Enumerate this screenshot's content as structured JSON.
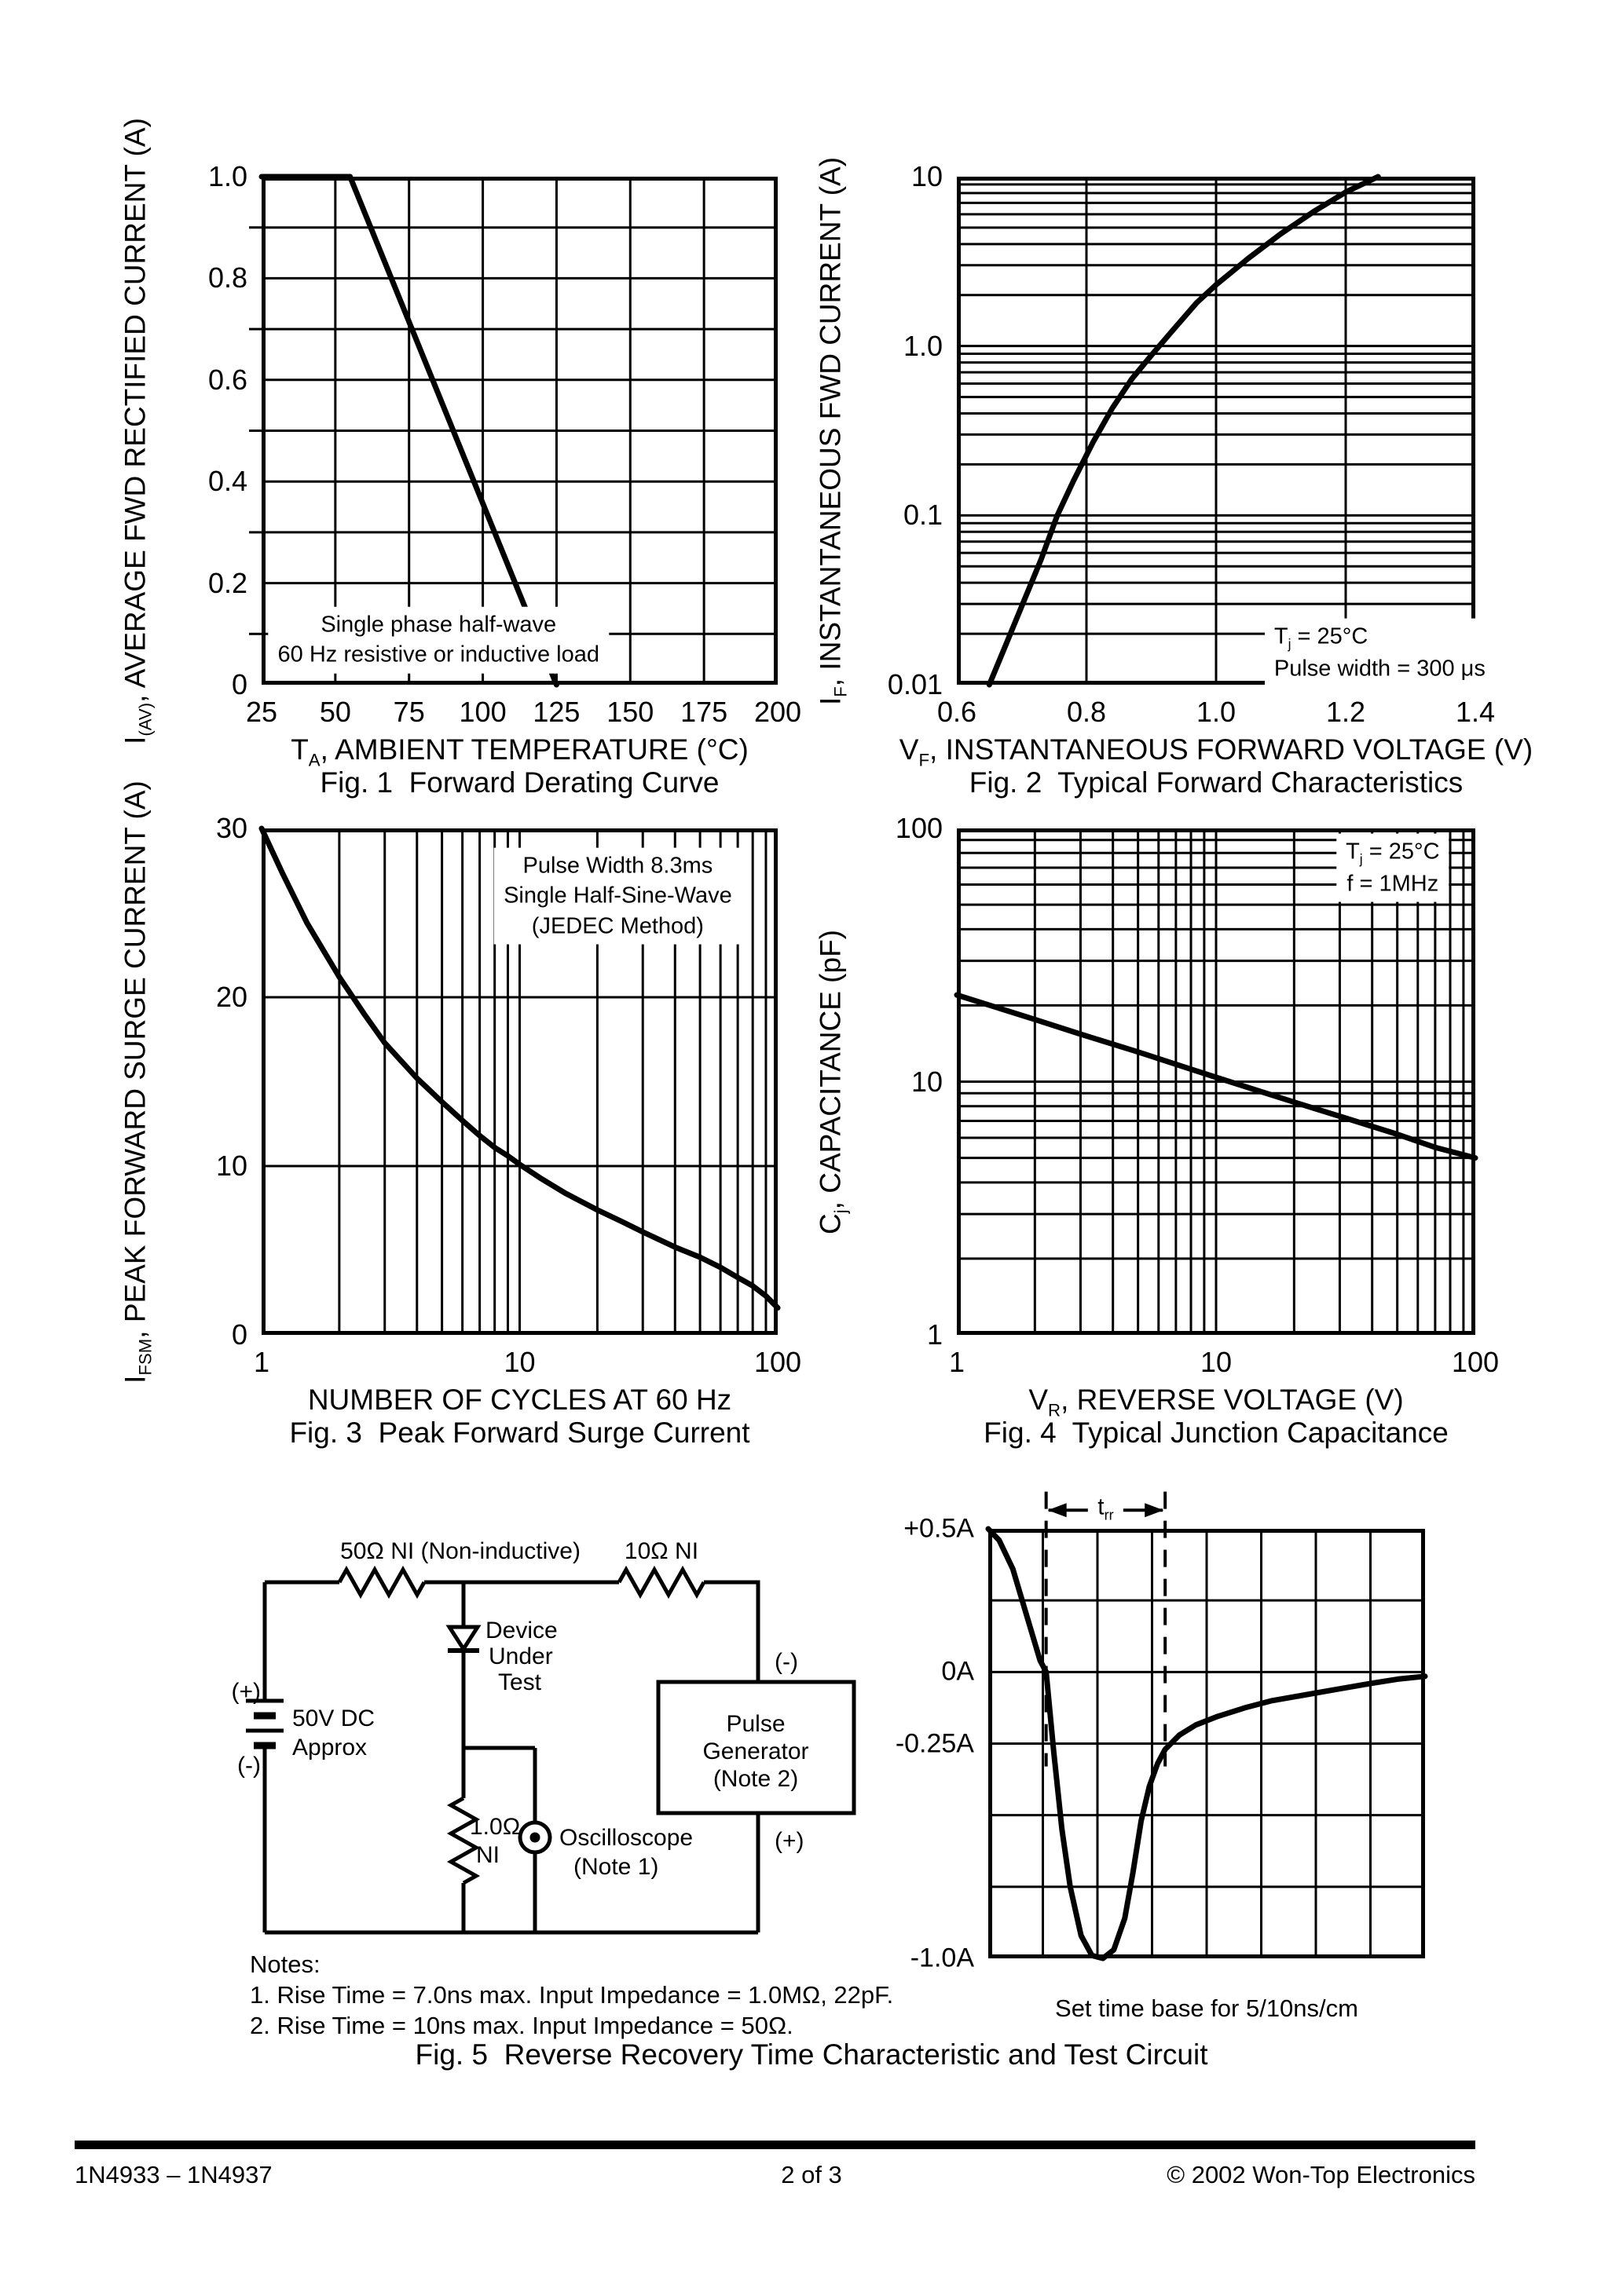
{
  "page": {
    "footer": {
      "left": "1N4933 – 1N4937",
      "center": "2 of 3",
      "right": "© 2002 Won-Top Electronics"
    },
    "fig5_caption": "Fig. 5  Reverse Recovery Time Characteristic and Test Circuit",
    "notes_title": "Notes:",
    "note1": "1. Rise Time = 7.0ns max. Input Impedance = 1.0MΩ, 22pF.",
    "note2": "2. Rise Time = 10ns max. Input Impedance = 50Ω."
  },
  "circuit": {
    "r1_label": "50Ω NI (Non-inductive)",
    "r2_label": "10Ω NI",
    "dut_line1": "Device",
    "dut_line2": "Under",
    "dut_line3": "Test",
    "battery_plus": "(+)",
    "battery_minus": "(-)",
    "battery_line1": "50V DC",
    "battery_line2": "Approx",
    "pulse_line1": "Pulse",
    "pulse_line2": "Generator",
    "pulse_line3": "(Note 2)",
    "pulse_minus": "(-)",
    "pulse_plus": "(+)",
    "sense_line1": "1.0Ω",
    "sense_line2": "NI",
    "osc_line1": "Oscilloscope",
    "osc_line2": "(Note 1)"
  },
  "chart_data": [
    {
      "id": "fig1",
      "type": "line",
      "title": "Fig. 1  Forward Derating Curve",
      "xscale": "linear",
      "yscale": "linear",
      "xlim": [
        25,
        200
      ],
      "ylim": [
        0,
        1
      ],
      "xlabel": [
        {
          "t": "T"
        },
        {
          "s": "A"
        },
        {
          "t": ", AMBIENT TEMPERATURE (°C)"
        }
      ],
      "ylabel": [
        {
          "t": "I"
        },
        {
          "s": "(AV)"
        },
        {
          "t": ", AVERAGE FWD RECTIFIED CURRENT (A)"
        }
      ],
      "xticks": [
        {
          "v": 25,
          "l": "25"
        },
        {
          "v": 50,
          "l": "50"
        },
        {
          "v": 75,
          "l": "75"
        },
        {
          "v": 100,
          "l": "100"
        },
        {
          "v": 125,
          "l": "125"
        },
        {
          "v": 150,
          "l": "150"
        },
        {
          "v": 175,
          "l": "175"
        },
        {
          "v": 200,
          "l": "200"
        }
      ],
      "yticks": [
        {
          "v": 0,
          "l": "0"
        },
        {
          "v": 0.2,
          "l": "0.2"
        },
        {
          "v": 0.4,
          "l": "0.4"
        },
        {
          "v": 0.6,
          "l": "0.6"
        },
        {
          "v": 0.8,
          "l": "0.8"
        },
        {
          "v": 1,
          "l": "1.0"
        }
      ],
      "xgrid": [
        50,
        75,
        100,
        125,
        150,
        175
      ],
      "ygrid": [
        0.1,
        0.2,
        0.3,
        0.4,
        0.5,
        0.6,
        0.7,
        0.8,
        0.9
      ],
      "yticks_out": [
        0.1,
        0.3,
        0.5,
        0.7,
        0.9
      ],
      "series": [
        {
          "name": "derating-curve",
          "points": [
            [
              25,
              1
            ],
            [
              55,
              1
            ],
            [
              125,
              0
            ]
          ]
        }
      ],
      "annotations": [
        {
          "x": 85,
          "y": 0.088,
          "align": "center",
          "lines": [
            [
              {
                "t": "Single phase half-wave"
              }
            ],
            [
              {
                "t": "60 Hz resistive or inductive load"
              }
            ]
          ]
        }
      ]
    },
    {
      "id": "fig2",
      "type": "line",
      "title": "Fig. 2  Typical Forward Characteristics",
      "xscale": "linear",
      "yscale": "log",
      "xlim": [
        0.6,
        1.4
      ],
      "ylim": [
        0.01,
        10
      ],
      "xlabel": [
        {
          "t": "V"
        },
        {
          "s": "F"
        },
        {
          "t": ", INSTANTANEOUS FORWARD VOLTAGE (V)"
        }
      ],
      "ylabel": [
        {
          "t": "I"
        },
        {
          "s": "F"
        },
        {
          "t": ", INSTANTANEOUS FWD CURRENT (A)"
        }
      ],
      "xticks": [
        {
          "v": 0.6,
          "l": "0.6"
        },
        {
          "v": 0.8,
          "l": "0.8"
        },
        {
          "v": 1.0,
          "l": "1.0"
        },
        {
          "v": 1.2,
          "l": "1.2"
        },
        {
          "v": 1.4,
          "l": "1.4"
        }
      ],
      "yticks": [
        {
          "v": 10,
          "l": "10"
        },
        {
          "v": 1,
          "l": "1.0"
        },
        {
          "v": 0.1,
          "l": "0.1"
        },
        {
          "v": 0.01,
          "l": "0.01"
        }
      ],
      "xgrid": [
        0.8,
        1.0,
        1.2
      ],
      "series": [
        {
          "name": "forward-characteristic-curve",
          "points": [
            [
              0.65,
              0.01
            ],
            [
              0.675,
              0.017
            ],
            [
              0.7,
              0.029
            ],
            [
              0.73,
              0.055
            ],
            [
              0.755,
              0.1
            ],
            [
              0.78,
              0.16
            ],
            [
              0.81,
              0.27
            ],
            [
              0.84,
              0.43
            ],
            [
              0.87,
              0.64
            ],
            [
              0.9,
              0.88
            ],
            [
              0.93,
              1.2
            ],
            [
              0.97,
              1.8
            ],
            [
              1.0,
              2.3
            ],
            [
              1.05,
              3.3
            ],
            [
              1.1,
              4.6
            ],
            [
              1.15,
              6.2
            ],
            [
              1.2,
              8.1
            ],
            [
              1.25,
              10
            ]
          ]
        }
      ],
      "annotations": [
        {
          "x": 1.075,
          "y": 0.0155,
          "align": "left",
          "lines": [
            [
              {
                "t": "T"
              },
              {
                "s": "j"
              },
              {
                "t": " = 25°C"
              }
            ],
            [
              {
                "t": "Pulse width = 300 μs"
              }
            ]
          ]
        }
      ]
    },
    {
      "id": "fig3",
      "type": "line",
      "title": "Fig. 3  Peak Forward Surge Current",
      "xscale": "log",
      "yscale": "linear",
      "xlim": [
        1,
        100
      ],
      "ylim": [
        0,
        30
      ],
      "xlabel": [
        {
          "t": "NUMBER OF CYCLES AT 60 Hz"
        }
      ],
      "ylabel": [
        {
          "t": "I"
        },
        {
          "s": "FSM"
        },
        {
          "t": ", PEAK FORWARD SURGE CURRENT (A)"
        }
      ],
      "xticks": [
        {
          "v": 1,
          "l": "1"
        },
        {
          "v": 10,
          "l": "10"
        },
        {
          "v": 100,
          "l": "100"
        }
      ],
      "yticks": [
        {
          "v": 0,
          "l": "0"
        },
        {
          "v": 10,
          "l": "10"
        },
        {
          "v": 20,
          "l": "20"
        },
        {
          "v": 30,
          "l": "30"
        }
      ],
      "ygrid": [
        10,
        20
      ],
      "series": [
        {
          "name": "surge-current-curve",
          "points": [
            [
              1,
              30
            ],
            [
              1.2,
              27.4
            ],
            [
              1.5,
              24.4
            ],
            [
              2,
              21.2
            ],
            [
              2.5,
              19
            ],
            [
              3,
              17.3
            ],
            [
              4,
              15.2
            ],
            [
              5,
              13.8
            ],
            [
              6,
              12.7
            ],
            [
              7,
              11.8
            ],
            [
              8,
              11.1
            ],
            [
              9,
              10.6
            ],
            [
              10,
              10.1
            ],
            [
              12,
              9.3
            ],
            [
              15,
              8.4
            ],
            [
              20,
              7.4
            ],
            [
              25,
              6.7
            ],
            [
              30,
              6.1
            ],
            [
              40,
              5.2
            ],
            [
              50,
              4.6
            ],
            [
              60,
              4.0
            ],
            [
              70,
              3.4
            ],
            [
              80,
              2.9
            ],
            [
              90,
              2.3
            ],
            [
              100,
              1.6
            ]
          ]
        }
      ],
      "annotations": [
        {
          "x": 24,
          "y": 26,
          "align": "center",
          "lines": [
            [
              {
                "t": "Pulse Width 8.3ms"
              }
            ],
            [
              {
                "t": "Single Half-Sine-Wave"
              }
            ],
            [
              {
                "t": "(JEDEC Method)"
              }
            ]
          ]
        }
      ]
    },
    {
      "id": "fig4",
      "type": "line",
      "title": "Fig. 4  Typical Junction Capacitance",
      "xscale": "log",
      "yscale": "log",
      "xlim": [
        1,
        100
      ],
      "ylim": [
        1,
        100
      ],
      "xlabel": [
        {
          "t": "V"
        },
        {
          "s": "R"
        },
        {
          "t": ", REVERSE VOLTAGE (V)"
        }
      ],
      "ylabel": [
        {
          "t": "C"
        },
        {
          "s": "j"
        },
        {
          "t": ", CAPACITANCE (pF)"
        }
      ],
      "xticks": [
        {
          "v": 1,
          "l": "1"
        },
        {
          "v": 10,
          "l": "10"
        },
        {
          "v": 100,
          "l": "100"
        }
      ],
      "yticks": [
        {
          "v": 100,
          "l": "100"
        },
        {
          "v": 10,
          "l": "10"
        },
        {
          "v": 1,
          "l": "1"
        }
      ],
      "series": [
        {
          "name": "junction-capacitance-line",
          "points": [
            [
              1,
              22
            ],
            [
              2,
              17.6
            ],
            [
              3,
              15.4
            ],
            [
              5,
              13.1
            ],
            [
              10,
              10.4
            ],
            [
              20,
              8.3
            ],
            [
              30,
              7.3
            ],
            [
              50,
              6.2
            ],
            [
              70,
              5.5
            ],
            [
              100,
              5
            ]
          ]
        }
      ],
      "annotations": [
        {
          "x": 48,
          "y": 70,
          "align": "center",
          "lines": [
            [
              {
                "t": "T"
              },
              {
                "s": "j"
              },
              {
                "t": " = 25°C"
              }
            ],
            [
              {
                "t": "f = 1MHz"
              }
            ]
          ]
        }
      ]
    },
    {
      "id": "fig5wave",
      "type": "line",
      "small": true,
      "xscale": "linear",
      "yscale": "linear",
      "xlim": [
        0,
        8
      ],
      "ylim": [
        -1,
        0.5
      ],
      "xlabel": [
        {
          "t": "Set time base for 5/10ns/cm"
        }
      ],
      "yticks": [
        {
          "v": 0.5,
          "l": "+0.5A"
        },
        {
          "v": 0,
          "l": "0A"
        },
        {
          "v": -0.25,
          "l": "-0.25A"
        },
        {
          "v": -1,
          "l": "-1.0A"
        }
      ],
      "xgrid": [
        1,
        2,
        3,
        4,
        5,
        6,
        7
      ],
      "ygrid": [
        0.25,
        0,
        -0.25,
        -0.5,
        -0.75
      ],
      "dashed_x": [
        1.06,
        3.24
      ],
      "dash_y": [
        0.63,
        -0.33
      ],
      "arrow_y": 0.565,
      "arrow_label": [
        {
          "t": "t"
        },
        {
          "s": "rr"
        }
      ],
      "series": [
        {
          "name": "reverse-recovery-waveform",
          "points": [
            [
              0,
              0.5
            ],
            [
              0.2,
              0.46
            ],
            [
              0.45,
              0.36
            ],
            [
              0.7,
              0.2
            ],
            [
              0.95,
              0.04
            ],
            [
              1.06,
              0
            ],
            [
              1.2,
              -0.28
            ],
            [
              1.35,
              -0.55
            ],
            [
              1.5,
              -0.75
            ],
            [
              1.7,
              -0.92
            ],
            [
              1.9,
              -0.99
            ],
            [
              2.1,
              -1
            ],
            [
              2.3,
              -0.97
            ],
            [
              2.5,
              -0.86
            ],
            [
              2.65,
              -0.7
            ],
            [
              2.8,
              -0.52
            ],
            [
              2.95,
              -0.4
            ],
            [
              3.1,
              -0.32
            ],
            [
              3.24,
              -0.27
            ],
            [
              3.5,
              -0.22
            ],
            [
              3.8,
              -0.185
            ],
            [
              4.2,
              -0.155
            ],
            [
              4.7,
              -0.125
            ],
            [
              5.2,
              -0.1
            ],
            [
              5.8,
              -0.08
            ],
            [
              6.4,
              -0.06
            ],
            [
              7,
              -0.04
            ],
            [
              7.5,
              -0.025
            ],
            [
              8,
              -0.015
            ]
          ]
        }
      ]
    }
  ]
}
